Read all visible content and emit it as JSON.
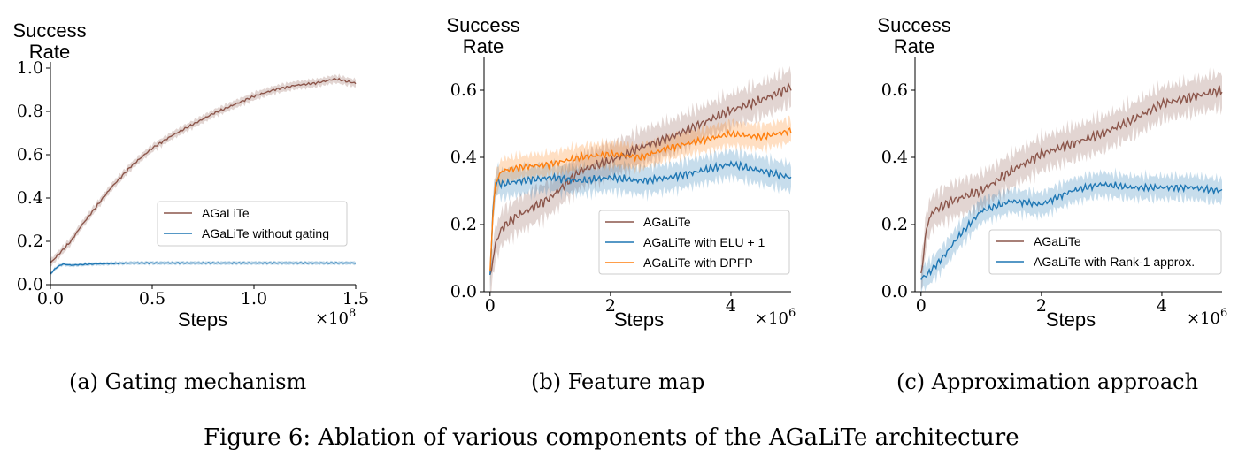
{
  "figure_caption": "Figure 6: Ablation of various components of the AGaLiTe architecture",
  "colors": {
    "brown": "#8c564b",
    "blue": "#1f77b4",
    "orange": "#ff7f0e"
  },
  "chart_data": [
    {
      "type": "line",
      "caption": "(a) Gating mechanism",
      "ylabel": [
        "Success",
        "Rate"
      ],
      "xlabel": "Steps",
      "x_multiplier": "×10",
      "x_multiplier_exp": "8",
      "xlim": [
        0,
        150000000
      ],
      "ylim": [
        0,
        1.0
      ],
      "xticks": [
        0,
        50000000,
        100000000,
        150000000
      ],
      "xtick_labels": [
        "0.0",
        "0.5",
        "1.0",
        "1.5"
      ],
      "yticks": [
        0,
        0.2,
        0.4,
        0.6,
        0.8,
        1.0
      ],
      "ytick_labels": [
        "0.0",
        "0.2",
        "0.4",
        "0.6",
        "0.8",
        "1.0"
      ],
      "legend_position": "center-right",
      "series": [
        {
          "name": "AGaLiTe",
          "color": "#8c564b",
          "band": 0.018,
          "x": [
            0,
            5000000,
            10000000,
            15000000,
            20000000,
            30000000,
            40000000,
            50000000,
            60000000,
            70000000,
            80000000,
            90000000,
            100000000,
            110000000,
            120000000,
            130000000,
            140000000,
            145000000,
            150000000
          ],
          "y": [
            0.1,
            0.15,
            0.2,
            0.27,
            0.33,
            0.45,
            0.55,
            0.63,
            0.69,
            0.74,
            0.79,
            0.83,
            0.87,
            0.9,
            0.92,
            0.93,
            0.95,
            0.94,
            0.93
          ]
        },
        {
          "name": "AGaLiTe without gating",
          "color": "#1f77b4",
          "band": 0.008,
          "x": [
            0,
            3000000,
            6000000,
            10000000,
            20000000,
            40000000,
            60000000,
            80000000,
            100000000,
            120000000,
            140000000,
            150000000
          ],
          "y": [
            0.05,
            0.08,
            0.095,
            0.09,
            0.095,
            0.1,
            0.1,
            0.1,
            0.1,
            0.1,
            0.1,
            0.1
          ]
        }
      ]
    },
    {
      "type": "line",
      "caption": "(b) Feature map",
      "ylabel": [
        "Success",
        "Rate"
      ],
      "xlabel": "Steps",
      "x_multiplier": "×10",
      "x_multiplier_exp": "6",
      "xlim": [
        -0.1,
        5.0
      ],
      "ylim": [
        0,
        0.7
      ],
      "xticks": [
        0,
        2,
        4
      ],
      "xtick_labels": [
        "0",
        "2",
        "4"
      ],
      "yticks": [
        0,
        0.2,
        0.4,
        0.6
      ],
      "ytick_labels": [
        "0.0",
        "0.2",
        "0.4",
        "0.6"
      ],
      "legend_position": "lower-right",
      "series": [
        {
          "name": "AGaLiTe",
          "color": "#8c564b",
          "band": 0.05,
          "x": [
            0,
            0.05,
            0.1,
            0.2,
            0.4,
            0.6,
            0.8,
            1.0,
            1.5,
            2.0,
            2.5,
            3.0,
            3.5,
            4.0,
            4.5,
            5.0
          ],
          "y": [
            0.04,
            0.1,
            0.15,
            0.19,
            0.22,
            0.24,
            0.26,
            0.28,
            0.36,
            0.39,
            0.43,
            0.46,
            0.5,
            0.54,
            0.57,
            0.61
          ]
        },
        {
          "name": "AGaLiTe with ELU + 1",
          "color": "#1f77b4",
          "band": 0.04,
          "x": [
            0,
            0.05,
            0.1,
            0.2,
            0.5,
            1.0,
            1.5,
            2.0,
            2.5,
            3.0,
            3.5,
            4.0,
            4.5,
            5.0
          ],
          "y": [
            0.05,
            0.25,
            0.33,
            0.32,
            0.33,
            0.34,
            0.33,
            0.34,
            0.33,
            0.34,
            0.36,
            0.38,
            0.36,
            0.34
          ]
        },
        {
          "name": "AGaLiTe with DPFP",
          "color": "#ff7f0e",
          "band": 0.035,
          "x": [
            0,
            0.05,
            0.1,
            0.2,
            0.5,
            1.0,
            1.5,
            2.0,
            2.5,
            3.0,
            3.5,
            4.0,
            4.5,
            5.0
          ],
          "y": [
            0.05,
            0.25,
            0.33,
            0.36,
            0.37,
            0.38,
            0.4,
            0.41,
            0.4,
            0.43,
            0.45,
            0.47,
            0.46,
            0.48
          ]
        }
      ]
    },
    {
      "type": "line",
      "caption": "(c) Approximation approach",
      "ylabel": [
        "Success",
        "Rate"
      ],
      "xlabel": "Steps",
      "x_multiplier": "×10",
      "x_multiplier_exp": "6",
      "xlim": [
        -0.1,
        5.0
      ],
      "ylim": [
        0,
        0.7
      ],
      "xticks": [
        0,
        2,
        4
      ],
      "xtick_labels": [
        "0",
        "2",
        "4"
      ],
      "yticks": [
        0,
        0.2,
        0.4,
        0.6
      ],
      "ytick_labels": [
        "0.0",
        "0.2",
        "0.4",
        "0.6"
      ],
      "legend_position": "lower-right",
      "series": [
        {
          "name": "AGaLiTe",
          "color": "#8c564b",
          "band": 0.05,
          "x": [
            0,
            0.1,
            0.2,
            0.5,
            1.0,
            1.5,
            2.0,
            2.5,
            3.0,
            3.5,
            4.0,
            4.5,
            5.0
          ],
          "y": [
            0.05,
            0.2,
            0.24,
            0.27,
            0.3,
            0.36,
            0.41,
            0.44,
            0.47,
            0.51,
            0.56,
            0.58,
            0.6
          ]
        },
        {
          "name": "AGaLiTe with Rank-1 approx.",
          "color": "#1f77b4",
          "band": 0.035,
          "x": [
            0,
            0.1,
            0.2,
            0.4,
            0.6,
            0.8,
            1.0,
            1.5,
            2.0,
            2.5,
            3.0,
            3.5,
            4.0,
            4.5,
            5.0
          ],
          "y": [
            0.04,
            0.05,
            0.07,
            0.11,
            0.16,
            0.2,
            0.24,
            0.27,
            0.26,
            0.3,
            0.32,
            0.31,
            0.31,
            0.31,
            0.3
          ]
        }
      ]
    }
  ]
}
